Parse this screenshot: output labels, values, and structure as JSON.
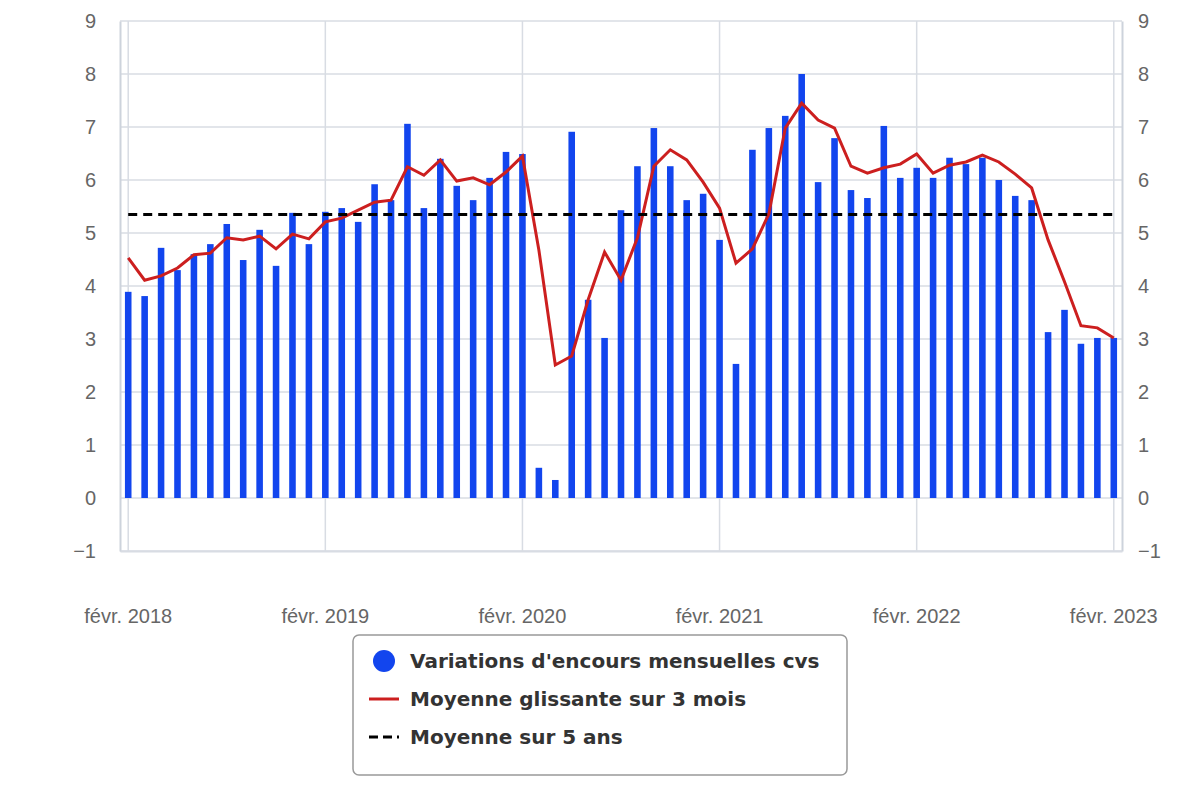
{
  "chart_data": {
    "type": "bar",
    "categories": [
      "févr. 2018",
      null,
      null,
      null,
      null,
      null,
      null,
      null,
      null,
      null,
      null,
      null,
      "févr. 2019",
      null,
      null,
      null,
      null,
      null,
      null,
      null,
      null,
      null,
      null,
      null,
      "févr. 2020",
      null,
      null,
      null,
      null,
      null,
      null,
      null,
      null,
      null,
      null,
      null,
      "févr. 2021",
      null,
      null,
      null,
      null,
      null,
      null,
      null,
      null,
      null,
      null,
      null,
      "févr. 2022",
      null,
      null,
      null,
      null,
      null,
      null,
      null,
      null,
      null,
      null,
      null,
      "févr. 2023"
    ],
    "series": [
      {
        "name": "Variations d'encours mensuelles cvs",
        "type": "bar",
        "color": "#1245ee",
        "marker": "circle",
        "values": [
          3.89,
          3.81,
          4.72,
          4.3,
          4.6,
          4.79,
          5.17,
          4.49,
          5.06,
          4.38,
          5.38,
          4.79,
          5.4,
          5.47,
          5.21,
          5.92,
          5.62,
          7.06,
          5.47,
          6.4,
          5.89,
          5.62,
          6.04,
          6.53,
          6.49,
          0.57,
          0.34,
          6.91,
          3.74,
          3.02,
          5.43,
          6.26,
          6.98,
          6.26,
          5.62,
          5.74,
          4.87,
          2.53,
          6.57,
          6.98,
          7.21,
          8.0,
          5.96,
          6.79,
          5.81,
          5.66,
          7.02,
          6.04,
          6.23,
          6.04,
          6.42,
          6.3,
          6.42,
          6.0,
          5.7,
          5.62,
          3.13,
          3.55,
          2.91,
          3.02,
          3.02
        ]
      },
      {
        "name": "Moyenne glissante sur 3 mois",
        "type": "line",
        "color": "#cc1f1f",
        "line_style": "solid",
        "values": [
          4.53,
          4.11,
          4.19,
          4.34,
          4.59,
          4.62,
          4.91,
          4.87,
          4.94,
          4.7,
          4.98,
          4.89,
          5.21,
          5.28,
          5.43,
          5.58,
          5.62,
          6.25,
          6.09,
          6.38,
          5.98,
          6.04,
          5.91,
          6.15,
          6.45,
          4.68,
          2.51,
          2.68,
          3.74,
          4.64,
          4.11,
          4.91,
          6.26,
          6.57,
          6.38,
          5.96,
          5.47,
          4.43,
          4.7,
          5.36,
          6.98,
          7.45,
          7.13,
          6.98,
          6.26,
          6.13,
          6.23,
          6.3,
          6.49,
          6.13,
          6.28,
          6.34,
          6.47,
          6.34,
          6.11,
          5.85,
          4.87,
          4.08,
          3.25,
          3.21,
          3.02
        ]
      },
      {
        "name": "Moyenne sur 5 ans",
        "type": "line",
        "color": "#000000",
        "line_style": "dashed",
        "values": [
          5.35,
          5.35,
          5.35,
          5.35,
          5.35,
          5.35,
          5.35,
          5.35,
          5.35,
          5.35,
          5.35,
          5.35,
          5.35,
          5.35,
          5.35,
          5.35,
          5.35,
          5.35,
          5.35,
          5.35,
          5.35,
          5.35,
          5.35,
          5.35,
          5.35,
          5.35,
          5.35,
          5.35,
          5.35,
          5.35,
          5.35,
          5.35,
          5.35,
          5.35,
          5.35,
          5.35,
          5.35,
          5.35,
          5.35,
          5.35,
          5.35,
          5.35,
          5.35,
          5.35,
          5.35,
          5.35,
          5.35,
          5.35,
          5.35,
          5.35,
          5.35,
          5.35,
          5.35,
          5.35,
          5.35,
          5.35,
          5.35,
          5.35,
          5.35,
          5.35,
          5.35
        ]
      }
    ],
    "ylim": [
      -1,
      9
    ],
    "yticks": [
      {
        "value": -1,
        "label": "−1"
      },
      0,
      1,
      2,
      3,
      4,
      5,
      6,
      7,
      8,
      9
    ],
    "grid": true,
    "legend": "bottom"
  }
}
